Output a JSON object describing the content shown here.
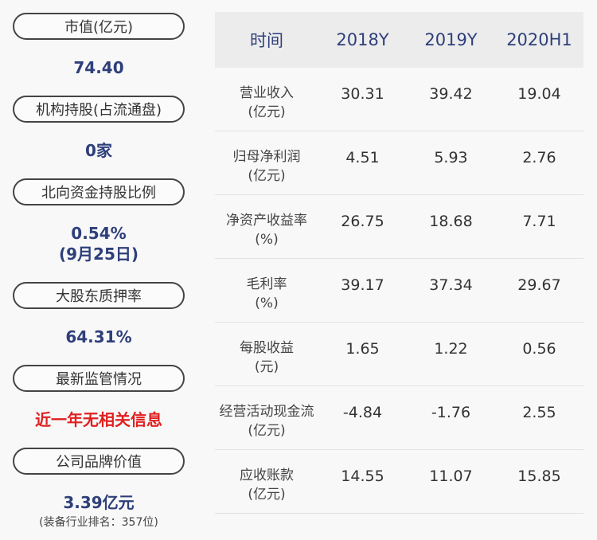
{
  "left_panel": [
    {
      "label": "市值(亿元)",
      "value": "74.40"
    },
    {
      "label": "机构持股(占流通盘)",
      "value": "0家"
    },
    {
      "label": "北向资金持股比例",
      "value": "0.54%",
      "value2": "(9月25日)"
    },
    {
      "label": "大股东质押率",
      "value": "64.31%"
    },
    {
      "label": "最新监管情况",
      "value": "近一年无相关信息"
    },
    {
      "label": "公司品牌价值",
      "value": "3.39亿元",
      "note": "(装备行业排名：357位)"
    }
  ],
  "colors": {
    "accent": "#2e3f7a",
    "alert": "#e02020"
  },
  "table": {
    "headers": [
      "时间",
      "2018Y",
      "2019Y",
      "2020H1"
    ],
    "rows": [
      {
        "label": "营业收入",
        "unit": "(亿元)",
        "values": [
          "30.31",
          "39.42",
          "19.04"
        ]
      },
      {
        "label": "归母净利润",
        "unit": "(亿元)",
        "values": [
          "4.51",
          "5.93",
          "2.76"
        ]
      },
      {
        "label": "净资产收益率",
        "unit": "(%)",
        "values": [
          "26.75",
          "18.68",
          "7.71"
        ]
      },
      {
        "label": "毛利率",
        "unit": "(%)",
        "values": [
          "39.17",
          "37.34",
          "29.67"
        ]
      },
      {
        "label": "每股收益",
        "unit": "(元)",
        "values": [
          "1.65",
          "1.22",
          "0.56"
        ]
      },
      {
        "label": "经营活动现金流",
        "unit": "(亿元)",
        "values": [
          "-4.84",
          "-1.76",
          "2.55"
        ]
      },
      {
        "label": "应收账款",
        "unit": "(亿元)",
        "values": [
          "14.55",
          "11.07",
          "15.85"
        ]
      }
    ]
  }
}
